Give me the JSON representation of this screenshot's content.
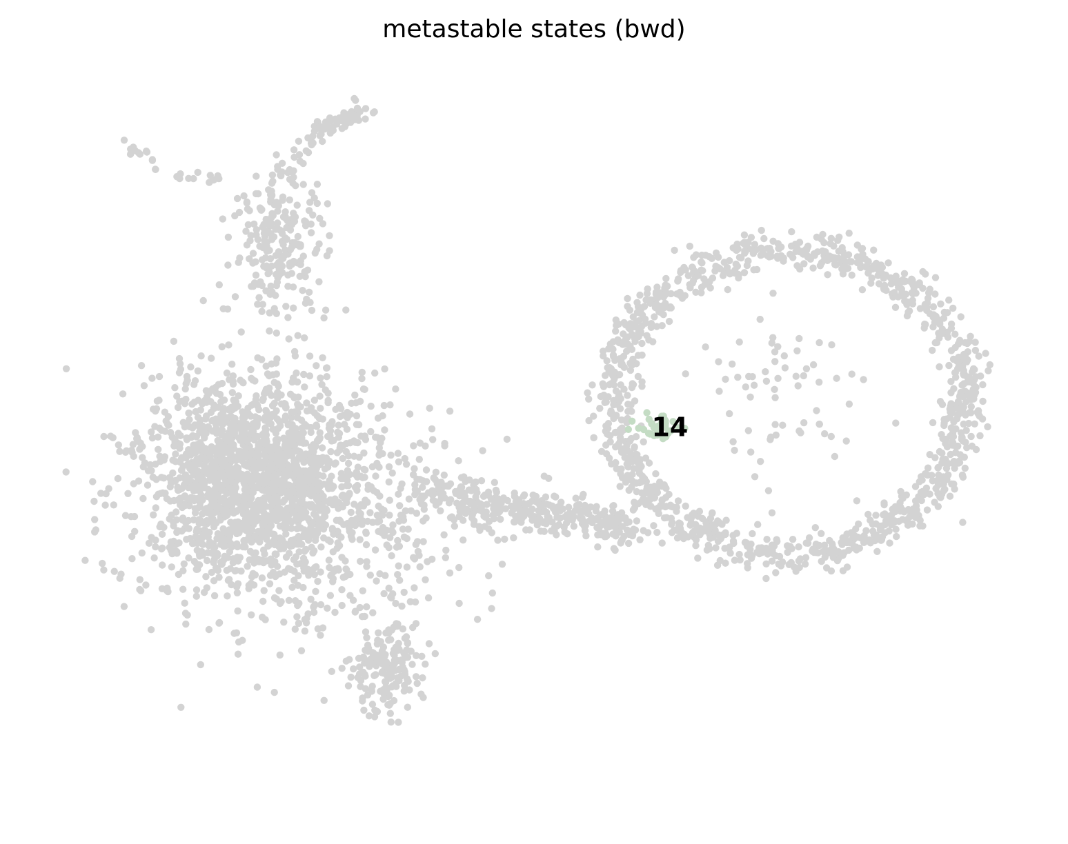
{
  "chart_data": {
    "type": "scatter",
    "title": "metastable states (bwd)",
    "xlabel": "",
    "ylabel": "",
    "grid": false,
    "axes_visible": false,
    "background_color": "#d3d3d3",
    "highlight_color": "#c4dcc4",
    "label_color": "#000000",
    "xlim": [
      0,
      100
    ],
    "ylim": [
      0,
      100
    ],
    "random_seed": 7,
    "background_regions": [
      {
        "name": "left-blob-core",
        "shape": "blob",
        "cx": 20,
        "cy": 45,
        "rx": 12,
        "ry": 14,
        "n": 1500
      },
      {
        "name": "left-blob-outer",
        "shape": "blob",
        "cx": 26,
        "cy": 38,
        "rx": 17,
        "ry": 17,
        "n": 650
      },
      {
        "name": "lower-tail",
        "shape": "blob",
        "cx": 34,
        "cy": 17,
        "rx": 4,
        "ry": 6,
        "n": 160
      },
      {
        "name": "upper-stem",
        "shape": "blob",
        "cx": 23,
        "cy": 77,
        "rx": 5,
        "ry": 10,
        "n": 220
      },
      {
        "name": "upper-arm",
        "shape": "path",
        "points": [
          [
            21,
            83
          ],
          [
            27,
            93
          ],
          [
            32,
            96.5
          ]
        ],
        "spread": 1.2,
        "n": 90
      },
      {
        "name": "upper-left-spur",
        "shape": "path",
        "points": [
          [
            7,
            91
          ],
          [
            12,
            87
          ],
          [
            17,
            86
          ]
        ],
        "spread": 0.9,
        "n": 25
      },
      {
        "name": "bridge",
        "shape": "path",
        "points": [
          [
            38,
            43
          ],
          [
            46,
            40
          ],
          [
            54,
            39
          ],
          [
            60,
            37
          ]
        ],
        "spread": 2.4,
        "n": 330
      },
      {
        "name": "ring",
        "shape": "ring",
        "cx": 77,
        "cy": 55,
        "rx": 18.5,
        "ry": 21.5,
        "thickness": 2.2,
        "n": 1150
      },
      {
        "name": "ring-interior-sparse",
        "shape": "blob",
        "cx": 76,
        "cy": 56,
        "rx": 11,
        "ry": 12,
        "n": 70
      }
    ],
    "highlighted_states": [
      {
        "label": "14",
        "shape": "blob",
        "cx": 63,
        "cy": 51.5,
        "rx": 2.2,
        "ry": 1.6,
        "n": 40
      }
    ]
  }
}
